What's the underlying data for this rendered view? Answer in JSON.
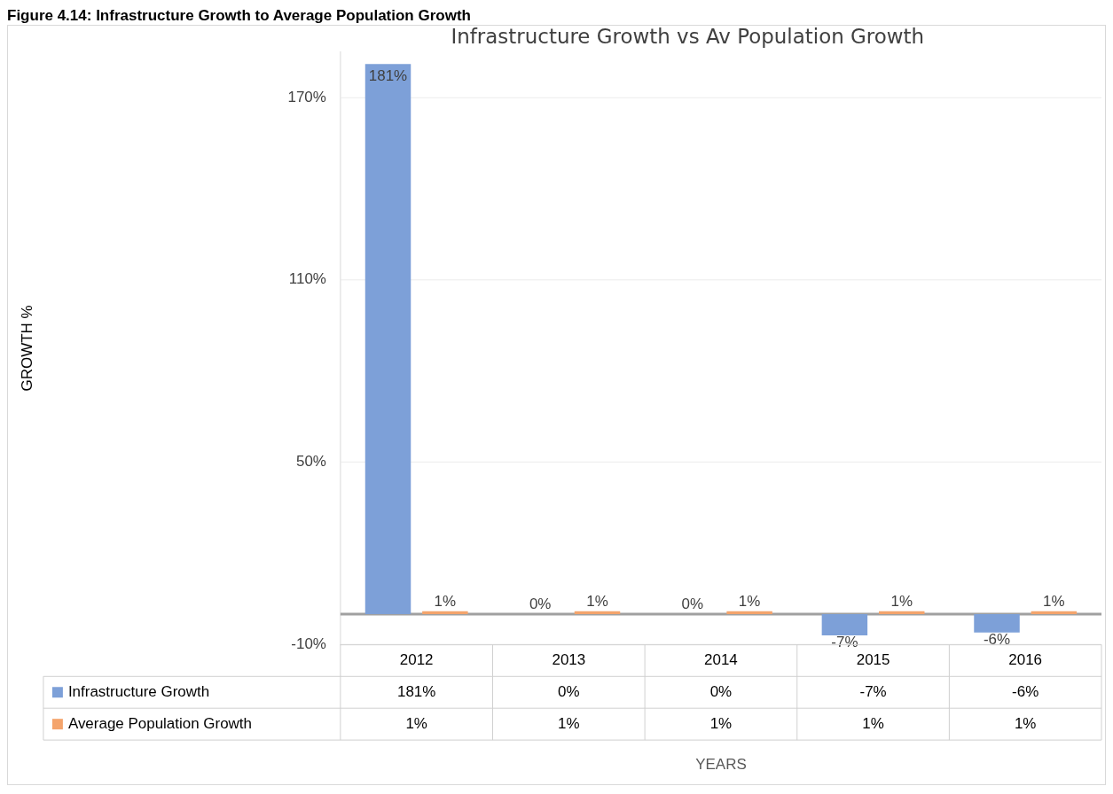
{
  "chart_data": {
    "type": "bar",
    "title": "Infrastructure Growth vs Av Population Growth",
    "subtitle": "Figure 4.14: Infrastructure Growth to Average Population Growth",
    "annotations": [
      "GROWTH %",
      "YEARS"
    ],
    "categories": [
      "2012",
      "2013",
      "2014",
      "2015",
      "2016"
    ],
    "series": [
      {
        "name": "Infrastructure Growth",
        "color": "#7da0d8",
        "values": [
          181,
          0,
          0,
          -7,
          -6
        ],
        "value_labels": [
          "181%",
          "0%",
          "0%",
          "-7%",
          "-6%"
        ]
      },
      {
        "name": "Average Population Growth",
        "color": "#f4a46c",
        "values": [
          1,
          1,
          1,
          1,
          1
        ],
        "value_labels": [
          "1%",
          "1%",
          "1%",
          "1%",
          "1%"
        ]
      }
    ],
    "ylim": [
      -10,
      185
    ],
    "yticks": [
      {
        "value": -10,
        "label": "-10%"
      },
      {
        "value": 50,
        "label": "50%"
      },
      {
        "value": 110,
        "label": "110%"
      },
      {
        "value": 170,
        "label": "170%"
      }
    ],
    "grid": "y",
    "legend": "bottom"
  }
}
